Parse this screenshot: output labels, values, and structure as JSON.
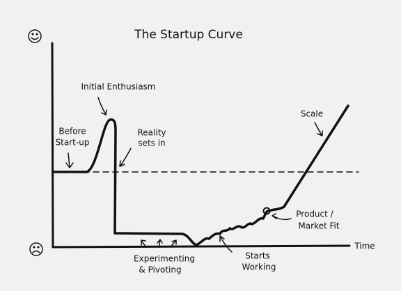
{
  "title": "The Startup Curve",
  "x_axis_label": "Time",
  "annotations": {
    "initial_enthusiasm": [
      "Initial Enthusiasm"
    ],
    "before_start_up": [
      "Before",
      "Start-up"
    ],
    "reality_sets_in": [
      "Reality",
      "sets in"
    ],
    "experimenting": [
      "Experimenting",
      "& Pivoting"
    ],
    "starts_working": [
      "Starts",
      "Working"
    ],
    "product_market_fit": [
      "Product /",
      "Market Fit"
    ],
    "scale": [
      "Scale"
    ]
  }
}
